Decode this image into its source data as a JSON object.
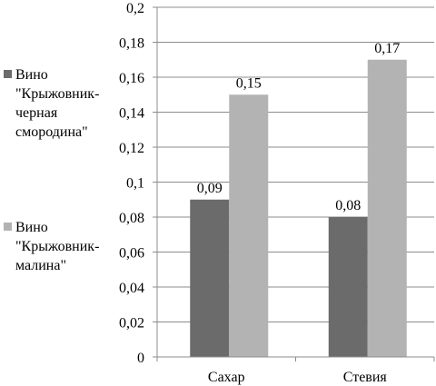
{
  "chart_data": {
    "type": "bar",
    "categories": [
      "Сахар",
      "Стевия"
    ],
    "series": [
      {
        "name": "Вино \"Крыжовник-черная смородина\"",
        "values": [
          0.09,
          0.08
        ],
        "color": "#6b6b6b"
      },
      {
        "name": "Вино \"Крыжовник-малина\"",
        "values": [
          0.15,
          0.17
        ],
        "color": "#b3b3b3"
      }
    ],
    "data_labels": [
      [
        "0,09",
        "0,08"
      ],
      [
        "0,15",
        "0,17"
      ]
    ],
    "ylim": [
      0,
      0.2
    ],
    "yticks": [
      0,
      0.02,
      0.04,
      0.06,
      0.08,
      0.1,
      0.12,
      0.14,
      0.16,
      0.18,
      0.2
    ],
    "ytick_labels": [
      "0",
      "0,02",
      "0,04",
      "0,06",
      "0,08",
      "0,1",
      "0,12",
      "0,14",
      "0,16",
      "0,18",
      "0,2"
    ],
    "grid": true,
    "legend_position": "left",
    "title": "",
    "xlabel": "",
    "ylabel": ""
  },
  "legend": {
    "items": [
      {
        "label": "Вино\n\"Крыжовник-\nчерная\nсмородина\"",
        "color": "#6b6b6b"
      },
      {
        "label": "Вино\n\"Крыжовник-\nмалина\"",
        "color": "#b3b3b3"
      }
    ]
  }
}
